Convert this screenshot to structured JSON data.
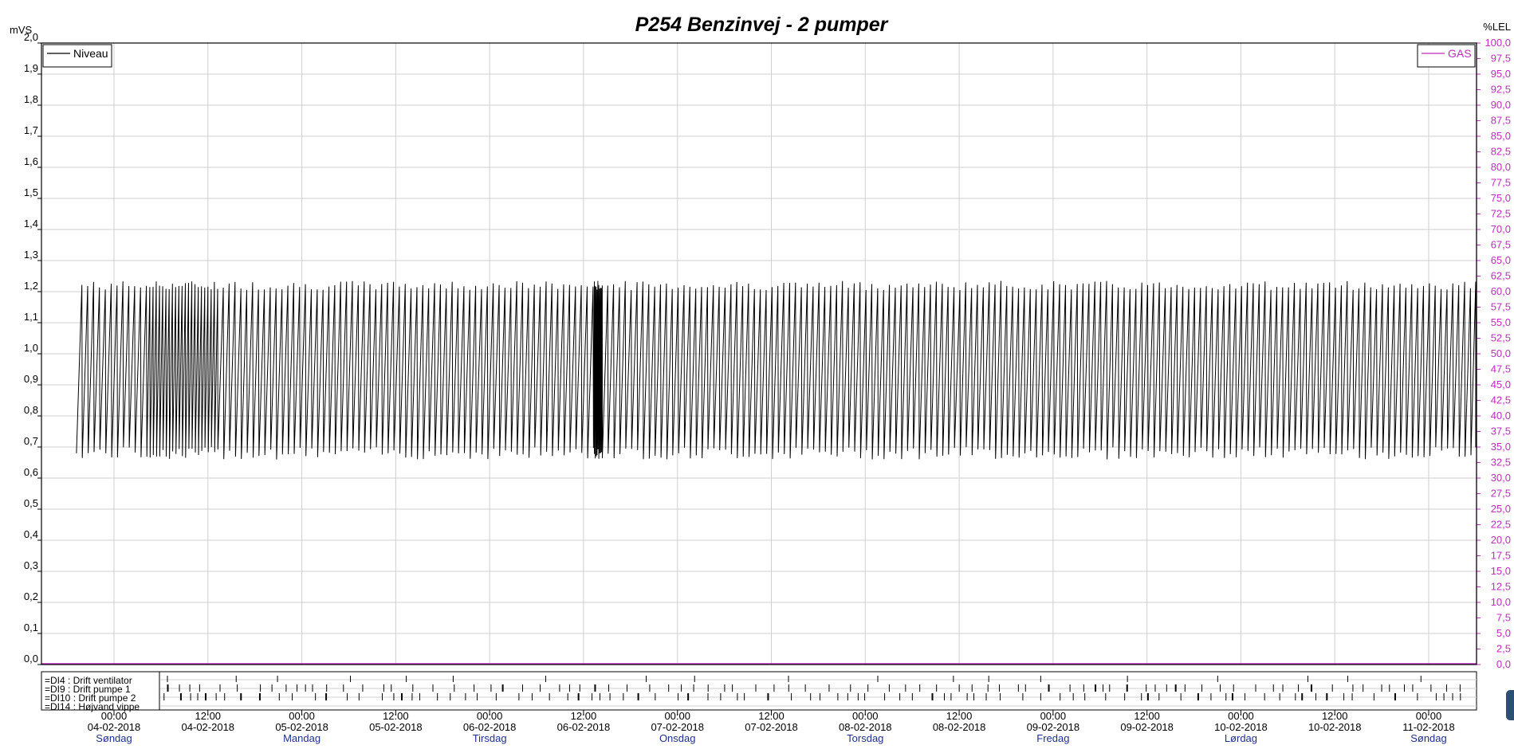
{
  "chart_data": {
    "type": "line",
    "title": "P254 Benzinvej - 2 pumper",
    "y_left": {
      "unit": "mVS",
      "range": [
        0.0,
        2.0
      ],
      "step": 0.1
    },
    "y_right": {
      "unit": "%LEL",
      "range": [
        0.0,
        100.0
      ],
      "step": 2.5,
      "color": "#c02cc0"
    },
    "grid": true,
    "x_range": [
      "04-02-2018 00:00",
      "11-02-2018 12:00"
    ],
    "x_ticks": [
      {
        "time": "00:00",
        "date": "04-02-2018",
        "day": "Søndag"
      },
      {
        "time": "12:00",
        "date": "04-02-2018",
        "day": ""
      },
      {
        "time": "00:00",
        "date": "05-02-2018",
        "day": "Mandag"
      },
      {
        "time": "12:00",
        "date": "05-02-2018",
        "day": ""
      },
      {
        "time": "00:00",
        "date": "06-02-2018",
        "day": "Tirsdag"
      },
      {
        "time": "12:00",
        "date": "06-02-2018",
        "day": ""
      },
      {
        "time": "00:00",
        "date": "07-02-2018",
        "day": "Onsdag"
      },
      {
        "time": "12:00",
        "date": "07-02-2018",
        "day": ""
      },
      {
        "time": "00:00",
        "date": "08-02-2018",
        "day": "Torsdag"
      },
      {
        "time": "12:00",
        "date": "08-02-2018",
        "day": ""
      },
      {
        "time": "00:00",
        "date": "09-02-2018",
        "day": "Fredag"
      },
      {
        "time": "12:00",
        "date": "09-02-2018",
        "day": ""
      },
      {
        "time": "00:00",
        "date": "10-02-2018",
        "day": "Lørdag"
      },
      {
        "time": "12:00",
        "date": "10-02-2018",
        "day": ""
      },
      {
        "time": "00:00",
        "date": "11-02-2018",
        "day": "Søndag"
      }
    ],
    "series": [
      {
        "name": "Niveau",
        "axis": "left",
        "color": "#000000",
        "legend": "top-left",
        "pattern": "sawtooth",
        "min": 0.68,
        "max": 1.22,
        "cycles_per_day": 32
      },
      {
        "name": "GAS",
        "axis": "right",
        "color": "#c02cc0",
        "legend": "top-right",
        "value": 0.0
      }
    ],
    "digital_channels": [
      "DI4 : Drift ventilator",
      "DI9 : Drift pumpe 1",
      "DI10 : Drift pumpe 2",
      "DI14 : Højvand vippe"
    ]
  },
  "colors": {
    "axis": "#000000",
    "grid": "#cfcfcf",
    "day_label": "#1f2f8f",
    "gas": "#c02cc0"
  }
}
